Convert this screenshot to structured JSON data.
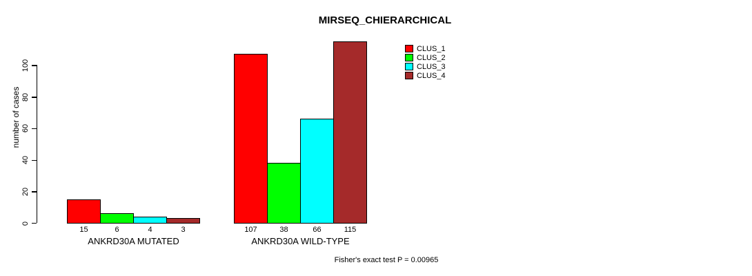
{
  "chart_data": {
    "type": "bar",
    "title": "MIRSEQ_CHIERARCHICAL",
    "xlabel": "",
    "ylabel": "number of cases",
    "categories": [
      "ANKRD30A MUTATED",
      "ANKRD30A WILD-TYPE"
    ],
    "series": [
      {
        "name": "CLUS_1",
        "color": "#FF0000",
        "values": [
          15,
          107
        ]
      },
      {
        "name": "CLUS_2",
        "color": "#00FF00",
        "values": [
          6,
          38
        ]
      },
      {
        "name": "CLUS_3",
        "color": "#00FFFF",
        "values": [
          4,
          66
        ]
      },
      {
        "name": "CLUS_4",
        "color": "#A52A2A",
        "values": [
          3,
          115
        ]
      }
    ],
    "y_ticks": [
      0,
      20,
      40,
      60,
      80,
      100
    ],
    "ylim": [
      0,
      115
    ],
    "grid": false,
    "legend_position": "top-right",
    "bar_borders": "#000000",
    "annotation": "Fisher's exact test P = 0.00965"
  }
}
